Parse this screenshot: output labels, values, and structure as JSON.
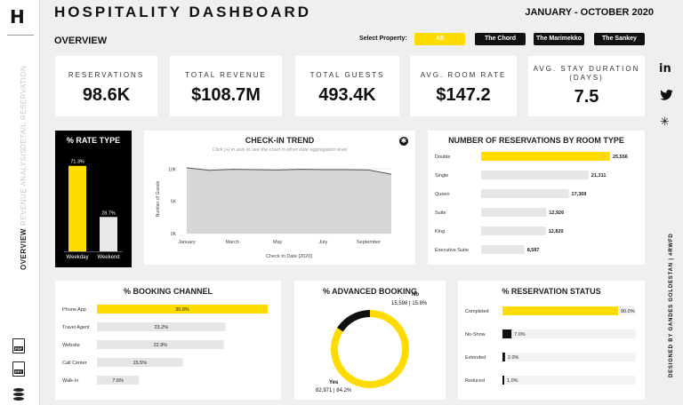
{
  "app": {
    "logo": "H",
    "title": "HOSPITALITY DASHBOARD",
    "date_range": "JANUARY - OCTOBER 2020"
  },
  "nav": [
    {
      "label": "DETAIL RESERVATION",
      "active": false
    },
    {
      "label": "REVENUE ANALYSIS",
      "active": false
    },
    {
      "label": "OVERVIEW",
      "active": true
    }
  ],
  "left_icons": [
    {
      "icon": "pdf-icon",
      "text": "PDF"
    },
    {
      "icon": "ppt-icon",
      "text": "PPT"
    },
    {
      "icon": "database-icon"
    }
  ],
  "overview_label": "OVERVIEW",
  "property_selector": {
    "label": "Select Property:",
    "options": [
      "All",
      "The Chord",
      "The Marimekko",
      "The Sankey"
    ],
    "selected": "All"
  },
  "kpis": [
    {
      "label": "RESERVATIONS",
      "value": "98.6K"
    },
    {
      "label": "TOTAL REVENUE",
      "value": "$108.7M"
    },
    {
      "label": "TOTAL GUESTS",
      "value": "493.4K"
    },
    {
      "label": "AVG. ROOM RATE",
      "value": "$147.2"
    },
    {
      "label": "AVG. STAY DURATION (DAYS)",
      "label_line1": "AVG. STAY DURATION",
      "label_line2": "(DAYS)",
      "value": "7.5"
    }
  ],
  "social": [
    {
      "icon": "linkedin-icon",
      "text": "in"
    },
    {
      "icon": "twitter-icon"
    },
    {
      "icon": "tableau-icon"
    }
  ],
  "credit": "DESIGNED BY GANDES GOLDESTAN | #RWFD",
  "colors": {
    "accent": "#ffdc00",
    "dark": "#111111",
    "bar_gray": "#e6e6e6",
    "line_area": "#d6d6d6"
  },
  "chart_data": [
    {
      "type": "bar",
      "title": "% RATE TYPE",
      "categories": [
        "Weekday",
        "Weekend"
      ],
      "values": [
        71.3,
        28.7
      ],
      "labels": [
        "71.3%",
        "28.7%"
      ],
      "ylim": [
        0,
        80
      ]
    },
    {
      "type": "area",
      "title": "CHECK-IN TREND",
      "subtitle": "Click [+] in axis to see the chart in other date aggregation level",
      "xlabel": "Check In Date [2020]",
      "ylabel": "Number of Guests",
      "x_ticks": [
        "January",
        "March",
        "May",
        "July",
        "September"
      ],
      "y_ticks": [
        "10K",
        "5K",
        "0K"
      ],
      "x": [
        "Jan",
        "Feb",
        "Mar",
        "Apr",
        "May",
        "Jun",
        "Jul",
        "Aug",
        "Sep",
        "Oct"
      ],
      "values": [
        10200,
        9800,
        9950,
        9900,
        9850,
        9950,
        9900,
        9900,
        9850,
        9200
      ],
      "ylim": [
        0,
        11000
      ]
    },
    {
      "type": "bar",
      "title": "NUMBER OF RESERVATIONS BY ROOM TYPE",
      "orientation": "horizontal",
      "categories": [
        "Double",
        "Single",
        "Queen",
        "Suite",
        "King",
        "Executive Suite"
      ],
      "values": [
        25556,
        21311,
        17369,
        12926,
        12820,
        8587
      ],
      "labels": [
        "25,556",
        "21,311",
        "17,369",
        "12,926",
        "12,820",
        "8,587"
      ]
    },
    {
      "type": "bar",
      "title": "% BOOKING CHANNEL",
      "orientation": "horizontal",
      "categories": [
        "Phone App",
        "Travel Agent",
        "Website",
        "Call Center",
        "Walk-In"
      ],
      "values": [
        30.8,
        23.2,
        22.9,
        15.5,
        7.6
      ],
      "labels": [
        "30.8%",
        "23.2%",
        "22.9%",
        "15.5%",
        "7.6%"
      ]
    },
    {
      "type": "pie",
      "title": "% ADVANCED BOOKING",
      "slices": [
        {
          "name": "Yes",
          "value": 82971,
          "pct": 84.2,
          "detail": "82,971 | 84.2%"
        },
        {
          "name": "No",
          "value": 15598,
          "pct": 15.8,
          "detail": "15,598 | 15.8%"
        }
      ]
    },
    {
      "type": "bar",
      "title": "% RESERVATION STATUS",
      "orientation": "horizontal",
      "categories": [
        "Completed",
        "No-Show",
        "Extended",
        "Reduced"
      ],
      "values": [
        90.0,
        7.0,
        2.0,
        1.0
      ],
      "labels": [
        "90.0%",
        "7.0%",
        "2.0%",
        "1.0%"
      ]
    }
  ]
}
